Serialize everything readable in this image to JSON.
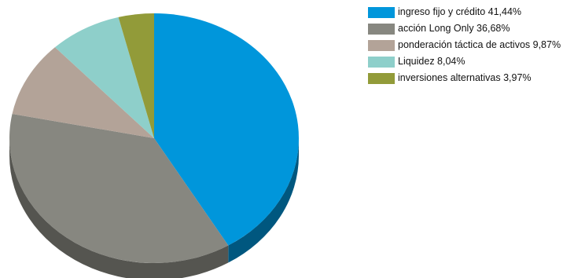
{
  "chart_data": {
    "type": "pie",
    "title": "",
    "slices": [
      {
        "label": "ingreso fijo y crédito",
        "value": 41.44,
        "value_label": "41,44%",
        "color": "#0096db",
        "side_color": "#00577f"
      },
      {
        "label": "acción Long Only",
        "value": 36.68,
        "value_label": "36,68%",
        "color": "#878780",
        "side_color": "#555550"
      },
      {
        "label": "ponderación táctica de activos",
        "value": 9.87,
        "value_label": "9,87%",
        "color": "#b3a398",
        "side_color": "#7b6f67"
      },
      {
        "label": "Liquidez",
        "value": 8.04,
        "value_label": "8,04%",
        "color": "#8ecfca",
        "side_color": "#5c928d"
      },
      {
        "label": "inversiones alternativas",
        "value": 3.97,
        "value_label": "3,97%",
        "color": "#929b39",
        "side_color": "#5f6524"
      }
    ],
    "legend_position": "right",
    "start_angle": "top, clockwise",
    "style": "3d"
  },
  "legend": {
    "items": [
      {
        "text": "ingreso fijo y crédito 41,44%",
        "color": "#0096db"
      },
      {
        "text": "acción Long Only 36,68%",
        "color": "#878780"
      },
      {
        "text": "ponderación táctica de activos 9,87%",
        "color": "#b3a398"
      },
      {
        "text": "Liquidez 8,04%",
        "color": "#8ecfca"
      },
      {
        "text": "inversiones alternativas 3,97%",
        "color": "#929b39"
      }
    ]
  }
}
